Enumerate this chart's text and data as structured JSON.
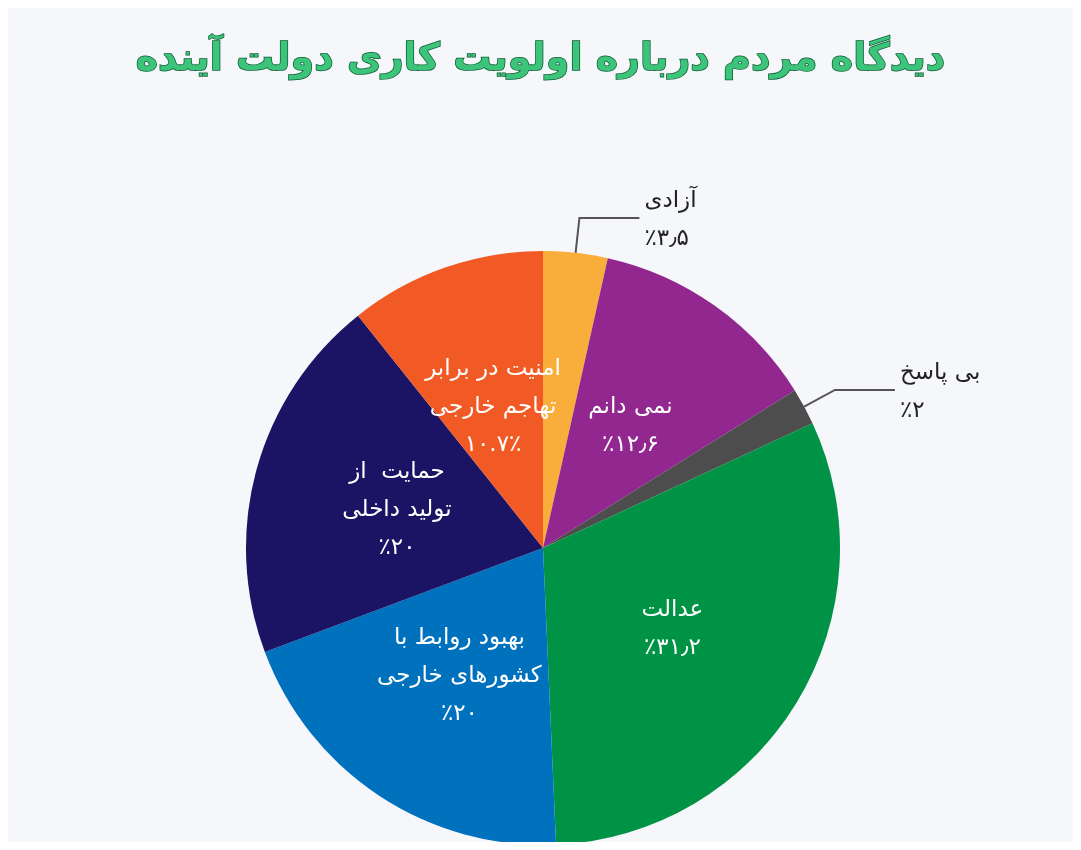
{
  "chart_data": {
    "type": "pie",
    "title": "دیدگاه مردم درباره اولویت کاری دولت آینده",
    "categories": [
      "آزادی",
      "نمی دانم",
      "بی پاسخ",
      "عدالت",
      "بهبود روابط با\nکشورهای خارجی",
      "حمایت  از\nتولید داخلی",
      "امنیت در برابر\nتهاجم خارجی"
    ],
    "values": [
      3.5,
      12.6,
      2,
      31.2,
      20,
      20,
      10.7
    ],
    "value_labels": [
      "٪۳٫۵",
      "٪۱۲٫۶",
      "٪۲",
      "٪۳۱٫۲",
      "٪۲۰",
      "٪۲۰",
      "۱۰.۷٪"
    ],
    "colors": [
      "#f9ae3b",
      "#92278f",
      "#4d4d4d",
      "#009245",
      "#0071bc",
      "#1b1464",
      "#f15a24"
    ],
    "legend": false
  }
}
